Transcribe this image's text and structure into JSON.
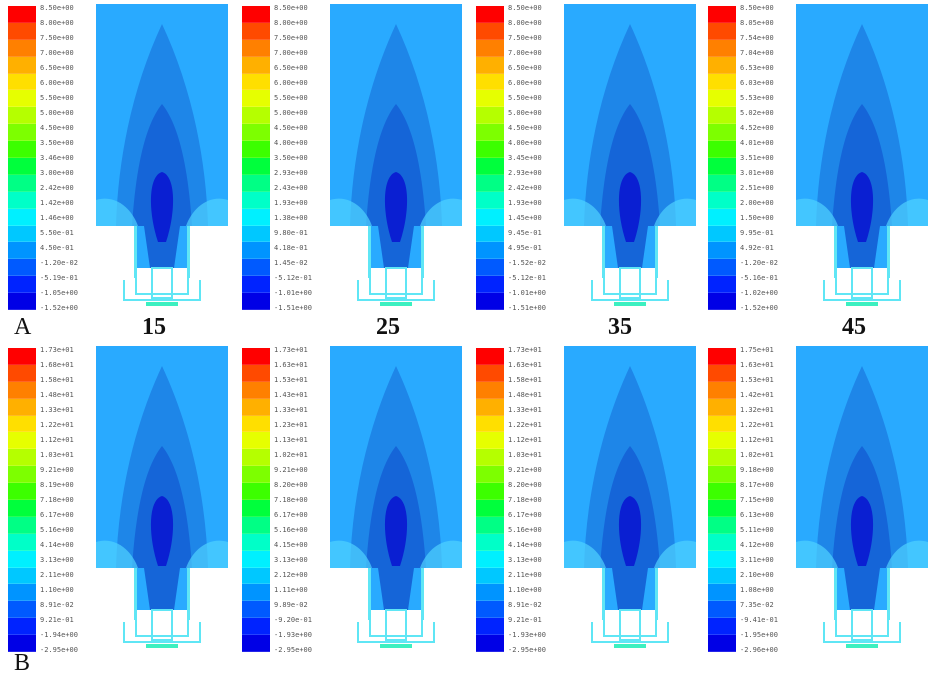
{
  "row_labels": [
    "A",
    "B"
  ],
  "column_labels": [
    "15",
    "25",
    "35",
    "45"
  ],
  "colors": {
    "scale": [
      "#ff0000",
      "#ff4a00",
      "#ff8000",
      "#ffb000",
      "#ffdf00",
      "#e6ff00",
      "#b5ff00",
      "#7dff00",
      "#3cff00",
      "#00ff3c",
      "#00ff85",
      "#00ffc8",
      "#00f0ff",
      "#00c8ff",
      "#0094ff",
      "#005aff",
      "#0023ff",
      "#0000e6"
    ],
    "background": "#29aaff",
    "mid": "#1e86e8",
    "inner": "#1565d8",
    "core": "#0a1fd2",
    "edge": "#4fd1ff",
    "wall": "#5fe6f5"
  },
  "panels": [
    {
      "id": "A15",
      "ticks": [
        "8.50e+00",
        "8.00e+00",
        "7.50e+00",
        "7.00e+00",
        "6.50e+00",
        "6.00e+00",
        "5.50e+00",
        "5.00e+00",
        "4.50e+00",
        "3.50e+00",
        "3.46e+00",
        "3.00e+00",
        "2.42e+00",
        "1.42e+00",
        "1.46e+00",
        "5.50e-01",
        "4.50e-01",
        "-1.20e-02",
        "-5.19e-01",
        "-1.05e+00",
        "-1.52e+00"
      ]
    },
    {
      "id": "A25",
      "ticks": [
        "8.50e+00",
        "8.00e+00",
        "7.50e+00",
        "7.00e+00",
        "6.50e+00",
        "6.00e+00",
        "5.50e+00",
        "5.00e+00",
        "4.50e+00",
        "4.00e+00",
        "3.50e+00",
        "2.93e+00",
        "2.43e+00",
        "1.93e+00",
        "1.38e+00",
        "9.80e-01",
        "4.18e-01",
        "1.45e-02",
        "-5.12e-01",
        "-1.01e+00",
        "-1.51e+00"
      ]
    },
    {
      "id": "A35",
      "ticks": [
        "8.50e+00",
        "8.00e+00",
        "7.50e+00",
        "7.00e+00",
        "6.50e+00",
        "6.00e+00",
        "5.50e+00",
        "5.00e+00",
        "4.50e+00",
        "4.00e+00",
        "3.45e+00",
        "2.93e+00",
        "2.42e+00",
        "1.93e+00",
        "1.45e+00",
        "9.45e-01",
        "4.95e-01",
        "-1.52e-02",
        "-5.12e-01",
        "-1.01e+00",
        "-1.51e+00"
      ]
    },
    {
      "id": "A45",
      "ticks": [
        "8.50e+00",
        "8.05e+00",
        "7.54e+00",
        "7.04e+00",
        "6.53e+00",
        "6.03e+00",
        "5.53e+00",
        "5.02e+00",
        "4.52e+00",
        "4.01e+00",
        "3.51e+00",
        "3.01e+00",
        "2.51e+00",
        "2.00e+00",
        "1.50e+00",
        "9.95e-01",
        "4.92e-01",
        "-1.20e-02",
        "-5.16e-01",
        "-1.02e+00",
        "-1.52e+00"
      ]
    },
    {
      "id": "B15",
      "ticks": [
        "1.73e+01",
        "1.68e+01",
        "1.58e+01",
        "1.48e+01",
        "1.33e+01",
        "1.22e+01",
        "1.12e+01",
        "1.03e+01",
        "9.21e+00",
        "8.19e+00",
        "7.18e+00",
        "6.17e+00",
        "5.16e+00",
        "4.14e+00",
        "3.13e+00",
        "2.11e+00",
        "1.10e+00",
        "8.91e-02",
        "9.21e-01",
        "-1.94e+00",
        "-2.95e+00"
      ]
    },
    {
      "id": "B25",
      "ticks": [
        "1.73e+01",
        "1.63e+01",
        "1.53e+01",
        "1.43e+01",
        "1.33e+01",
        "1.23e+01",
        "1.13e+01",
        "1.02e+01",
        "9.21e+00",
        "8.20e+00",
        "7.18e+00",
        "6.17e+00",
        "5.16e+00",
        "4.15e+00",
        "3.13e+00",
        "2.12e+00",
        "1.11e+00",
        "9.89e-02",
        "-9.20e-01",
        "-1.93e+00",
        "-2.95e+00"
      ]
    },
    {
      "id": "B35",
      "ticks": [
        "1.73e+01",
        "1.63e+01",
        "1.58e+01",
        "1.48e+01",
        "1.33e+01",
        "1.22e+01",
        "1.12e+01",
        "1.03e+01",
        "9.21e+00",
        "8.20e+00",
        "7.18e+00",
        "6.17e+00",
        "5.16e+00",
        "4.14e+00",
        "3.13e+00",
        "2.11e+00",
        "1.10e+00",
        "8.91e-02",
        "9.21e-01",
        "-1.93e+00",
        "-2.95e+00"
      ]
    },
    {
      "id": "B45",
      "ticks": [
        "1.75e+01",
        "1.63e+01",
        "1.53e+01",
        "1.42e+01",
        "1.32e+01",
        "1.22e+01",
        "1.12e+01",
        "1.02e+01",
        "9.18e+00",
        "8.17e+00",
        "7.15e+00",
        "6.13e+00",
        "5.11e+00",
        "4.12e+00",
        "3.11e+00",
        "2.10e+00",
        "1.08e+00",
        "7.35e-02",
        "-9.41e-01",
        "-1.95e+00",
        "-2.96e+00"
      ]
    }
  ]
}
